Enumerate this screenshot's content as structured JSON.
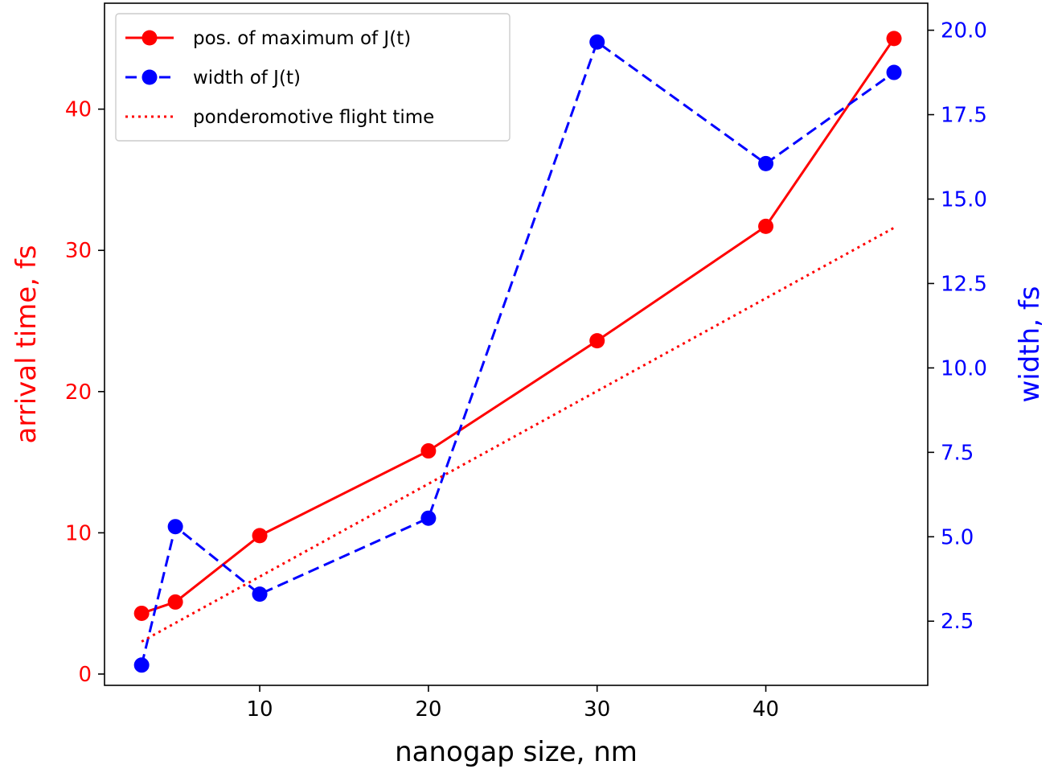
{
  "chart_data": {
    "type": "line",
    "title": "",
    "xlabel": "nanogap size, nm",
    "ylabel_left": "arrival time, fs",
    "ylabel_right": "width, fs",
    "xlim": [
      0.8,
      49.6
    ],
    "ylim_left": [
      -0.8,
      47.5
    ],
    "ylim_right": [
      0.6,
      20.8
    ],
    "x_ticks": [
      10,
      20,
      30,
      40
    ],
    "y_left_ticks": [
      0,
      10,
      20,
      30,
      40
    ],
    "y_right_ticks": [
      2.5,
      5.0,
      7.5,
      10.0,
      12.5,
      15.0,
      17.5,
      20.0
    ],
    "grid": false,
    "legend_position": "upper-left",
    "x": [
      3,
      5,
      10,
      20,
      30,
      40,
      47.6
    ],
    "series": [
      {
        "name": "pos. of maximum of J(t)",
        "axis": "left",
        "style": "solid",
        "marker": "circle",
        "color": "#ff0000",
        "values": [
          4.3,
          5.1,
          9.8,
          15.8,
          23.6,
          31.7,
          45.0
        ]
      },
      {
        "name": "width of J(t)",
        "axis": "right",
        "style": "dashed",
        "marker": "circle",
        "color": "#0000ff",
        "values": [
          1.2,
          5.3,
          3.3,
          5.55,
          19.65,
          16.05,
          18.75
        ]
      },
      {
        "name": "ponderomotive flight time",
        "axis": "left",
        "style": "dotted",
        "marker": "none",
        "color": "#ff0000",
        "x": [
          3,
          47.6
        ],
        "values": [
          2.3,
          31.6
        ]
      }
    ]
  }
}
